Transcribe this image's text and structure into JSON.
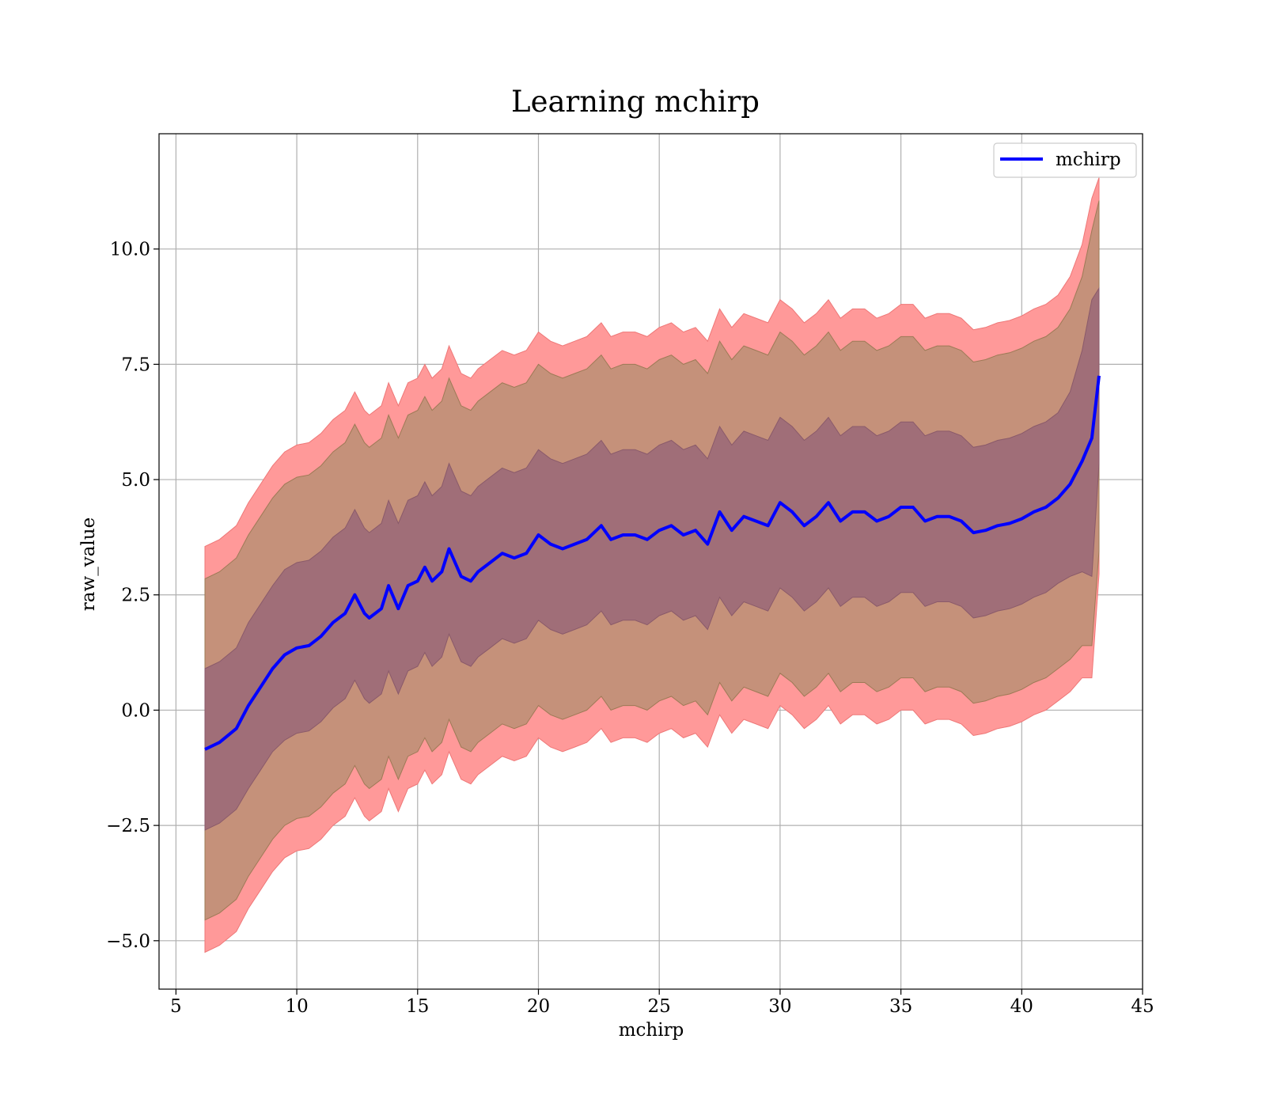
{
  "chart_data": {
    "type": "line",
    "title": "Learning mchirp",
    "xlabel": "mchirp",
    "ylabel": "raw_value",
    "xlim": [
      4.3,
      45
    ],
    "ylim": [
      -6.05,
      12.5
    ],
    "xticks": [
      5,
      10,
      15,
      20,
      25,
      30,
      35,
      40,
      45
    ],
    "yticks": [
      -5.0,
      -2.5,
      0.0,
      2.5,
      5.0,
      7.5,
      10.0
    ],
    "grid": true,
    "legend": {
      "placement": "top-right",
      "entries": [
        "mchirp"
      ]
    },
    "colors": {
      "line": "#0000ff",
      "band_outer": "#ff9999",
      "band_mid": "#c5917a",
      "band_inner": "#a06e78"
    },
    "series": [
      {
        "name": "mchirp",
        "x": [
          6.2,
          6.8,
          7.5,
          8.0,
          8.5,
          9.0,
          9.5,
          10.0,
          10.5,
          11.0,
          11.5,
          12.0,
          12.4,
          12.8,
          13.0,
          13.5,
          13.8,
          14.2,
          14.6,
          15.0,
          15.3,
          15.6,
          16.0,
          16.3,
          16.8,
          17.2,
          17.5,
          18.0,
          18.5,
          19.0,
          19.5,
          20.0,
          20.5,
          21.0,
          21.5,
          22.0,
          22.6,
          23.0,
          23.5,
          24.0,
          24.5,
          25.0,
          25.5,
          26.0,
          26.5,
          27.0,
          27.5,
          28.0,
          28.5,
          29.0,
          29.5,
          30.0,
          30.5,
          31.0,
          31.5,
          32.0,
          32.5,
          33.0,
          33.5,
          34.0,
          34.5,
          35.0,
          35.5,
          36.0,
          36.5,
          37.0,
          37.5,
          38.0,
          38.5,
          39.0,
          39.5,
          40.0,
          40.5,
          41.0,
          41.5,
          42.0,
          42.5,
          42.9,
          43.2
        ],
        "y": [
          -0.85,
          -0.7,
          -0.4,
          0.1,
          0.5,
          0.9,
          1.2,
          1.35,
          1.4,
          1.6,
          1.9,
          2.1,
          2.5,
          2.1,
          2.0,
          2.2,
          2.7,
          2.2,
          2.7,
          2.8,
          3.1,
          2.8,
          3.0,
          3.5,
          2.9,
          2.8,
          3.0,
          3.2,
          3.4,
          3.3,
          3.4,
          3.8,
          3.6,
          3.5,
          3.6,
          3.7,
          4.0,
          3.7,
          3.8,
          3.8,
          3.7,
          3.9,
          4.0,
          3.8,
          3.9,
          3.6,
          4.3,
          3.9,
          4.2,
          4.1,
          4.0,
          4.5,
          4.3,
          4.0,
          4.2,
          4.5,
          4.1,
          4.3,
          4.3,
          4.1,
          4.2,
          4.4,
          4.4,
          4.1,
          4.2,
          4.2,
          4.1,
          3.85,
          3.9,
          4.0,
          4.05,
          4.15,
          4.3,
          4.4,
          4.6,
          4.9,
          5.4,
          5.9,
          7.25
        ],
        "band_1_halfwidth": [
          1.75,
          1.75,
          1.75,
          1.8,
          1.8,
          1.8,
          1.85,
          1.85,
          1.85,
          1.85,
          1.85,
          1.85,
          1.85,
          1.85,
          1.85,
          1.85,
          1.85,
          1.85,
          1.85,
          1.85,
          1.85,
          1.85,
          1.85,
          1.85,
          1.85,
          1.85,
          1.85,
          1.85,
          1.85,
          1.85,
          1.85,
          1.85,
          1.85,
          1.85,
          1.85,
          1.85,
          1.85,
          1.85,
          1.85,
          1.85,
          1.85,
          1.85,
          1.85,
          1.85,
          1.85,
          1.85,
          1.85,
          1.85,
          1.85,
          1.85,
          1.85,
          1.85,
          1.85,
          1.85,
          1.85,
          1.85,
          1.85,
          1.85,
          1.85,
          1.85,
          1.85,
          1.85,
          1.85,
          1.85,
          1.85,
          1.85,
          1.85,
          1.85,
          1.85,
          1.85,
          1.85,
          1.85,
          1.85,
          1.85,
          1.85,
          2.0,
          2.4,
          3.0,
          1.9
        ],
        "band_2_halfwidth": [
          3.7,
          3.7,
          3.7,
          3.7,
          3.7,
          3.7,
          3.7,
          3.7,
          3.7,
          3.7,
          3.7,
          3.7,
          3.7,
          3.7,
          3.7,
          3.7,
          3.7,
          3.7,
          3.7,
          3.7,
          3.7,
          3.7,
          3.7,
          3.7,
          3.7,
          3.7,
          3.7,
          3.7,
          3.7,
          3.7,
          3.7,
          3.7,
          3.7,
          3.7,
          3.7,
          3.7,
          3.7,
          3.7,
          3.7,
          3.7,
          3.7,
          3.7,
          3.7,
          3.7,
          3.7,
          3.7,
          3.7,
          3.7,
          3.7,
          3.7,
          3.7,
          3.7,
          3.7,
          3.7,
          3.7,
          3.7,
          3.7,
          3.7,
          3.7,
          3.7,
          3.7,
          3.7,
          3.7,
          3.7,
          3.7,
          3.7,
          3.7,
          3.7,
          3.7,
          3.7,
          3.7,
          3.7,
          3.7,
          3.7,
          3.7,
          3.8,
          4.0,
          4.5,
          3.8
        ],
        "band_3_halfwidth": [
          4.4,
          4.4,
          4.4,
          4.4,
          4.4,
          4.4,
          4.4,
          4.4,
          4.4,
          4.4,
          4.4,
          4.4,
          4.4,
          4.4,
          4.4,
          4.4,
          4.4,
          4.4,
          4.4,
          4.4,
          4.4,
          4.4,
          4.4,
          4.4,
          4.4,
          4.4,
          4.4,
          4.4,
          4.4,
          4.4,
          4.4,
          4.4,
          4.4,
          4.4,
          4.4,
          4.4,
          4.4,
          4.4,
          4.4,
          4.4,
          4.4,
          4.4,
          4.4,
          4.4,
          4.4,
          4.4,
          4.4,
          4.4,
          4.4,
          4.4,
          4.4,
          4.4,
          4.4,
          4.4,
          4.4,
          4.4,
          4.4,
          4.4,
          4.4,
          4.4,
          4.4,
          4.4,
          4.4,
          4.4,
          4.4,
          4.4,
          4.4,
          4.4,
          4.4,
          4.4,
          4.4,
          4.4,
          4.4,
          4.4,
          4.4,
          4.5,
          4.7,
          5.2,
          4.3
        ]
      }
    ]
  }
}
